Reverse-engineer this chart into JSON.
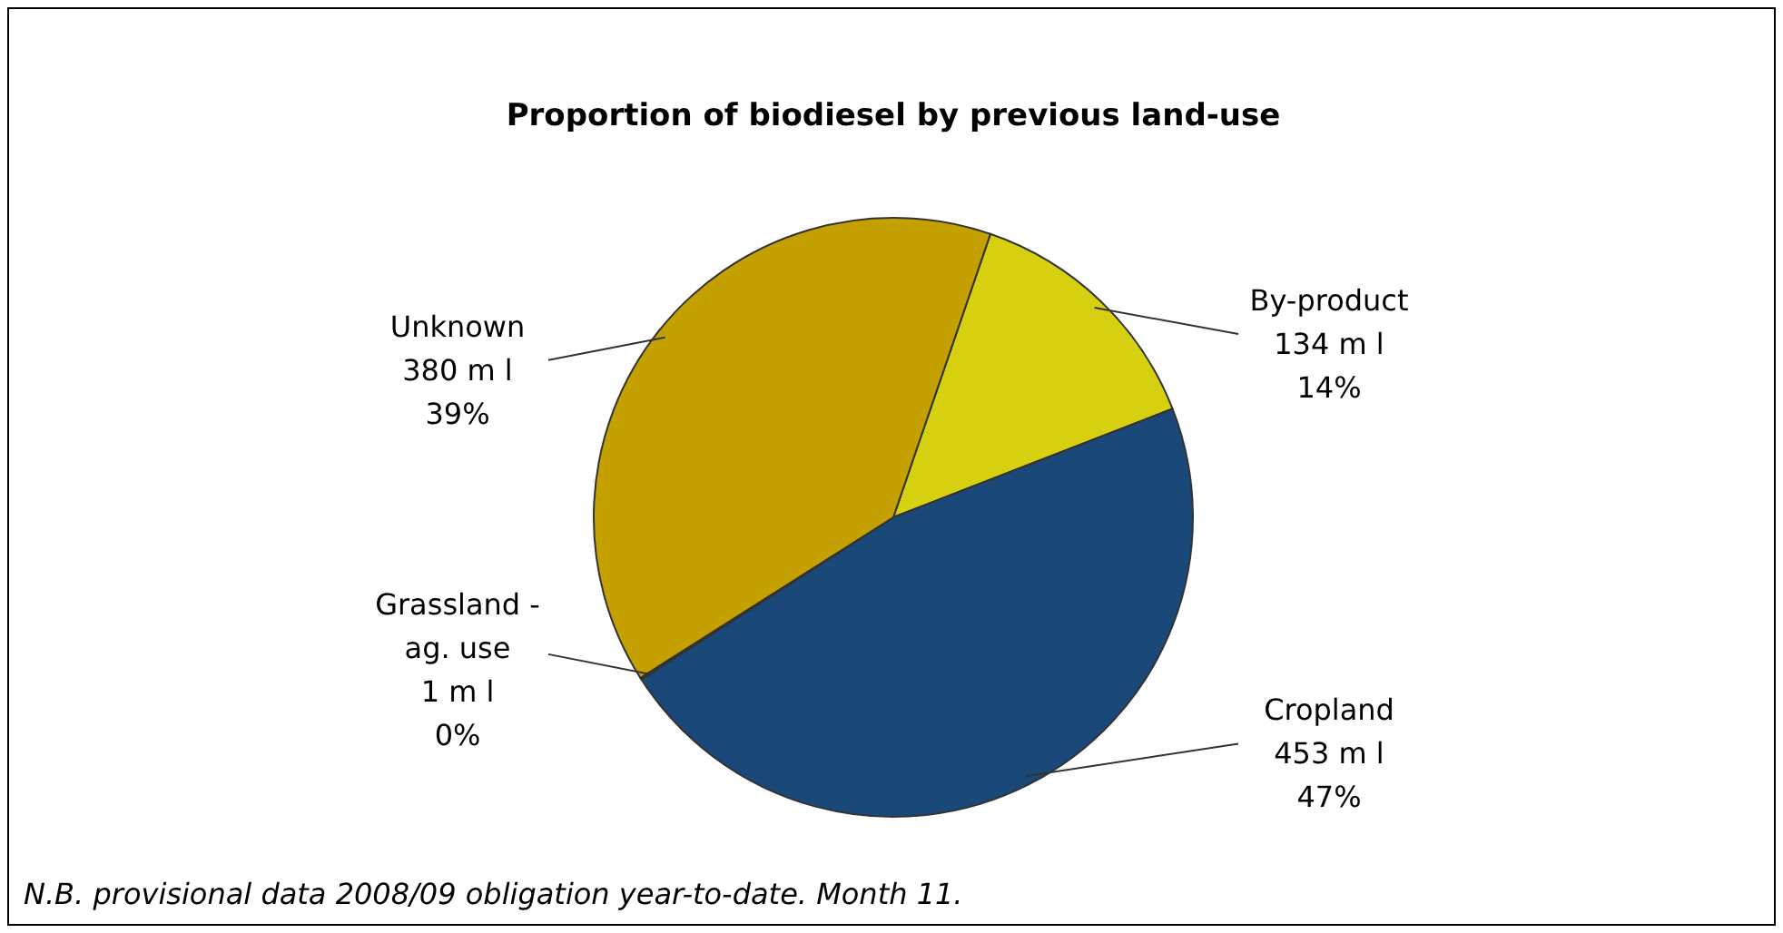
{
  "chart_data": {
    "type": "pie",
    "title": "Proportion of biodiesel by previous land-use",
    "categories": [
      "By-product",
      "Cropland",
      "Grassland - ag. use",
      "Unknown"
    ],
    "values": [
      134,
      453,
      1,
      380
    ],
    "colors": [
      "#d6d010",
      "#1a4878",
      "#6b6a3a",
      "#c4a000"
    ],
    "value_labels": [
      "134 m l\n14%",
      "453 m l\n47%",
      "1 m l\n0%",
      "380 m l\n39%"
    ],
    "legend": false,
    "annotations": [
      "N.B. provisional data 2008/09 obligation year-to-date. Month 11."
    ]
  }
}
